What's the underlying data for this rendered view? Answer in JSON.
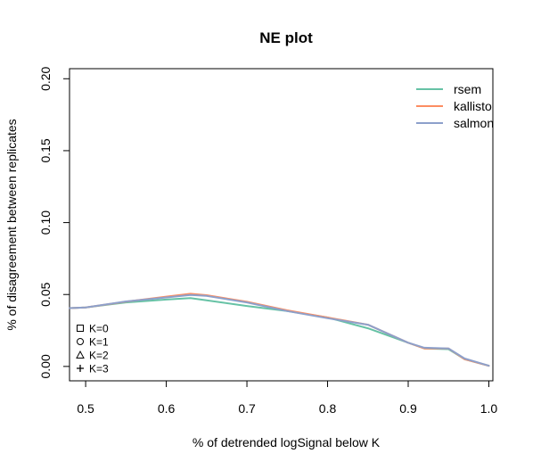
{
  "chart_data": {
    "type": "line",
    "title": "NE plot",
    "xlabel": "% of detrended logSignal below K",
    "ylabel": "% of disagreement between replicates",
    "xlim": [
      0.48,
      1.005
    ],
    "ylim": [
      -0.01,
      0.207
    ],
    "xticks": [
      0.5,
      0.6,
      0.7,
      0.8,
      0.9,
      1.0
    ],
    "xtick_labels": [
      "0.5",
      "0.6",
      "0.7",
      "0.8",
      "0.9",
      "1.0"
    ],
    "yticks": [
      0.0,
      0.05,
      0.1,
      0.15,
      0.2
    ],
    "ytick_labels": [
      "0.00",
      "0.05",
      "0.10",
      "0.15",
      "0.20"
    ],
    "grid": false,
    "legend_position": "top-right",
    "series": [
      {
        "name": "rsem",
        "color": "#66c2a5",
        "x": [
          0.48,
          0.5,
          0.55,
          0.6,
          0.63,
          0.65,
          0.7,
          0.75,
          0.8,
          0.85,
          0.9,
          0.92,
          0.95,
          0.97,
          1.0
        ],
        "y": [
          0.0405,
          0.041,
          0.0445,
          0.0465,
          0.0475,
          0.046,
          0.042,
          0.0385,
          0.034,
          0.0265,
          0.0165,
          0.0125,
          0.012,
          0.005,
          0.0005
        ]
      },
      {
        "name": "kallisto",
        "color": "#fc8d62",
        "x": [
          0.48,
          0.5,
          0.55,
          0.6,
          0.63,
          0.65,
          0.7,
          0.75,
          0.8,
          0.85,
          0.9,
          0.92,
          0.95,
          0.97,
          1.0
        ],
        "y": [
          0.0405,
          0.041,
          0.045,
          0.0485,
          0.0505,
          0.0495,
          0.045,
          0.039,
          0.034,
          0.029,
          0.0165,
          0.0125,
          0.0125,
          0.005,
          0.0005
        ]
      },
      {
        "name": "salmon",
        "color": "#8da0cb",
        "x": [
          0.48,
          0.5,
          0.55,
          0.6,
          0.63,
          0.65,
          0.7,
          0.75,
          0.8,
          0.85,
          0.9,
          0.92,
          0.95,
          0.97,
          1.0
        ],
        "y": [
          0.0405,
          0.041,
          0.0452,
          0.048,
          0.0497,
          0.049,
          0.0445,
          0.0385,
          0.0335,
          0.029,
          0.0165,
          0.013,
          0.0125,
          0.0055,
          0.0005
        ]
      }
    ],
    "k_legend": [
      {
        "symbol": "square",
        "label": "K=0"
      },
      {
        "symbol": "circle",
        "label": "K=1"
      },
      {
        "symbol": "triangle",
        "label": "K=2"
      },
      {
        "symbol": "plus",
        "label": "K=3"
      }
    ]
  }
}
